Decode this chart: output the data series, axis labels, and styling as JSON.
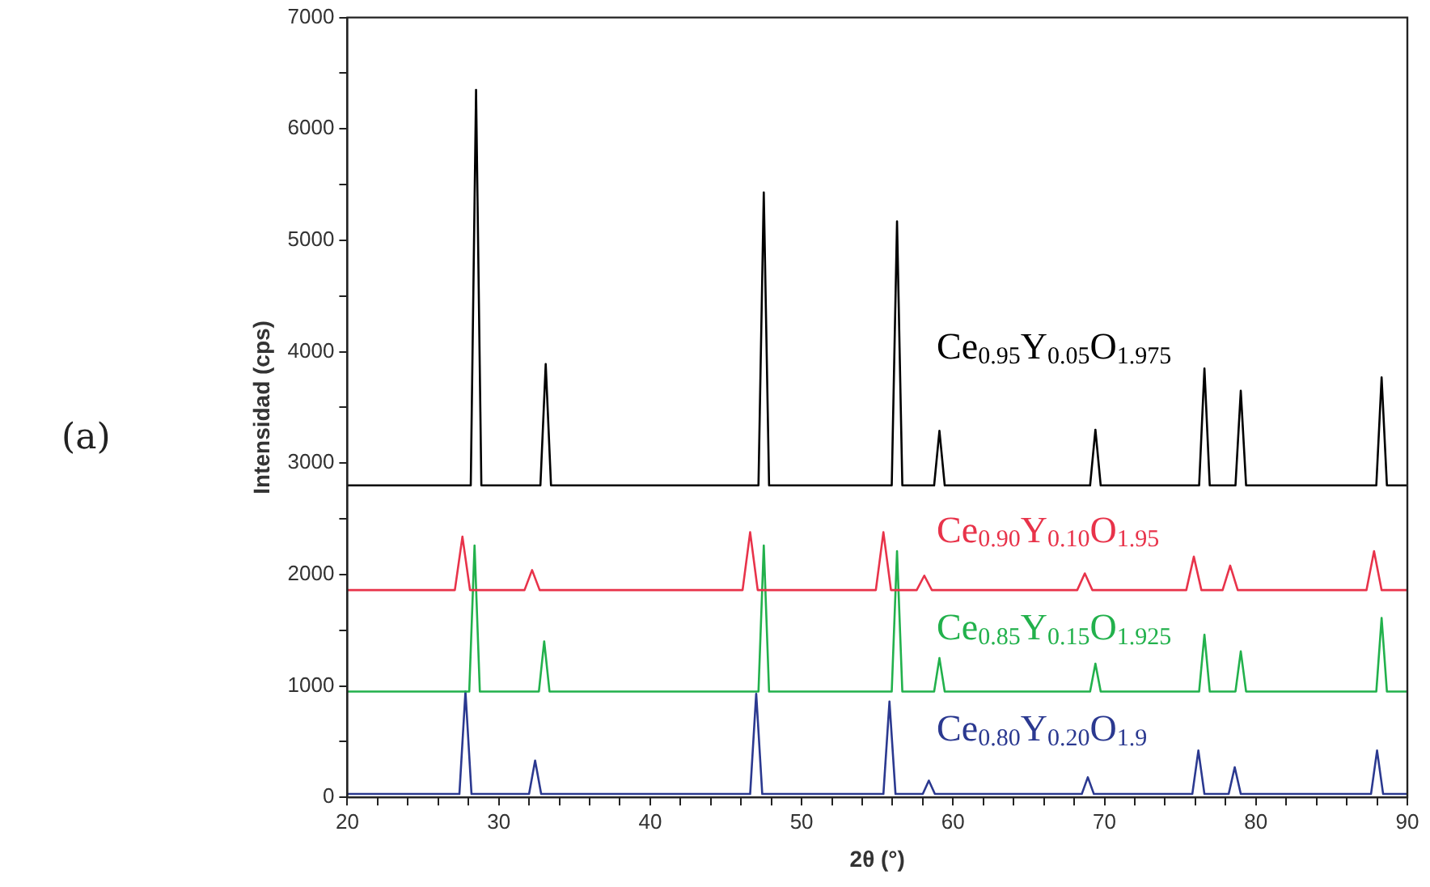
{
  "chart_data": {
    "type": "line",
    "xlabel": "2θ (°)",
    "ylabel": "Intensidad (cps)",
    "annotations": [
      "(a)"
    ],
    "xlim": [
      20,
      90
    ],
    "ylim": [
      0,
      7000
    ],
    "xticks": [
      20,
      {
        "value": 22,
        "label": null
      },
      {
        "value": 24,
        "label": null
      },
      {
        "value": 26,
        "label": null
      },
      {
        "value": 28,
        "label": null
      },
      30,
      {
        "value": 32,
        "label": null
      },
      {
        "value": 34,
        "label": null
      },
      {
        "value": 36,
        "label": null
      },
      {
        "value": 38,
        "label": null
      },
      40,
      {
        "value": 42,
        "label": null
      },
      {
        "value": 44,
        "label": null
      },
      {
        "value": 46,
        "label": null
      },
      {
        "value": 48,
        "label": null
      },
      50,
      {
        "value": 52,
        "label": null
      },
      {
        "value": 54,
        "label": null
      },
      {
        "value": 56,
        "label": null
      },
      {
        "value": 58,
        "label": null
      },
      60,
      {
        "value": 62,
        "label": null
      },
      {
        "value": 64,
        "label": null
      },
      {
        "value": 66,
        "label": null
      },
      {
        "value": 68,
        "label": null
      },
      70,
      {
        "value": 72,
        "label": null
      },
      {
        "value": 74,
        "label": null
      },
      {
        "value": 76,
        "label": null
      },
      {
        "value": 78,
        "label": null
      },
      80,
      {
        "value": 82,
        "label": null
      },
      {
        "value": 84,
        "label": null
      },
      {
        "value": 86,
        "label": null
      },
      {
        "value": 88,
        "label": null
      },
      90
    ],
    "yticks": [
      0,
      {
        "value": 500,
        "label": null
      },
      1000,
      {
        "value": 1500,
        "label": null
      },
      2000,
      {
        "value": 2500,
        "label": null
      },
      3000,
      {
        "value": 3500,
        "label": null
      },
      4000,
      {
        "value": 4500,
        "label": null
      },
      5000,
      {
        "value": 5500,
        "label": null
      },
      6000,
      {
        "value": 6500,
        "label": null
      },
      7000
    ],
    "grid": false,
    "legend": false,
    "marker": "none",
    "line_style": "solid",
    "series": [
      {
        "name": "Ce$_{0.95}$Y$_{0.05}$O$_{1.975}$",
        "color": "#000000",
        "x": [
          20,
          28.15,
          28.5,
          28.85,
          32.75,
          33.1,
          33.45,
          47.15,
          47.5,
          47.85,
          55.95,
          56.3,
          56.65,
          58.75,
          59.1,
          59.45,
          69.05,
          69.4,
          69.75,
          76.25,
          76.6,
          76.95,
          78.65,
          79.0,
          79.35,
          87.95,
          88.3,
          88.65,
          90
        ],
        "values": [
          2800,
          2800,
          6350,
          2800,
          2800,
          3890,
          2800,
          2800,
          5430,
          2800,
          2800,
          5170,
          2800,
          2800,
          3290,
          2800,
          2800,
          3300,
          2800,
          2800,
          3850,
          2800,
          2800,
          3650,
          2800,
          2800,
          3770,
          2800,
          2800
        ]
      },
      {
        "name": "Ce$_{0.90}$Y$_{0.10}$O$_{1.95}$",
        "color": "#e8334a",
        "x": [
          20,
          27.1,
          27.6,
          28.1,
          31.7,
          32.2,
          32.7,
          46.1,
          46.6,
          47.1,
          54.9,
          55.4,
          55.9,
          57.6,
          58.1,
          58.6,
          68.2,
          68.7,
          69.2,
          75.4,
          75.9,
          76.4,
          77.8,
          78.3,
          78.8,
          87.3,
          87.8,
          88.3,
          90
        ],
        "values": [
          1860,
          1860,
          2340,
          1860,
          1860,
          2040,
          1860,
          1860,
          2380,
          1860,
          1860,
          2380,
          1860,
          1860,
          1990,
          1860,
          1860,
          2010,
          1860,
          1860,
          2160,
          1860,
          1860,
          2080,
          1860,
          1860,
          2210,
          1860,
          1860
        ]
      },
      {
        "name": "Ce$_{0.85}$Y$_{0.15}$O$_{1.925}$",
        "color": "#22b14c",
        "x": [
          20,
          28.05,
          28.4,
          28.75,
          32.65,
          33.0,
          33.35,
          47.15,
          47.5,
          47.85,
          55.95,
          56.3,
          56.65,
          58.75,
          59.1,
          59.45,
          69.05,
          69.4,
          69.75,
          76.25,
          76.6,
          76.95,
          78.65,
          79.0,
          79.35,
          87.95,
          88.3,
          88.65,
          90
        ],
        "values": [
          950,
          950,
          2260,
          950,
          950,
          1400,
          950,
          950,
          2260,
          950,
          950,
          2210,
          950,
          950,
          1250,
          950,
          950,
          1200,
          950,
          950,
          1460,
          950,
          950,
          1310,
          950,
          950,
          1610,
          950,
          950
        ]
      },
      {
        "name": "Ce$_{0.80}$Y$_{0.20}$O$_{1.9}$",
        "color": "#2b3990",
        "x": [
          20,
          27.4,
          27.8,
          28.2,
          32.0,
          32.4,
          32.8,
          46.6,
          47.0,
          47.4,
          55.4,
          55.8,
          56.2,
          58.0,
          58.4,
          58.8,
          68.5,
          68.9,
          69.3,
          75.8,
          76.2,
          76.6,
          78.2,
          78.6,
          79.0,
          87.6,
          88.0,
          88.4,
          90
        ],
        "values": [
          30,
          30,
          950,
          30,
          30,
          330,
          30,
          30,
          930,
          30,
          30,
          860,
          30,
          30,
          150,
          30,
          30,
          180,
          30,
          30,
          420,
          30,
          30,
          270,
          30,
          30,
          420,
          30,
          30
        ]
      }
    ]
  }
}
